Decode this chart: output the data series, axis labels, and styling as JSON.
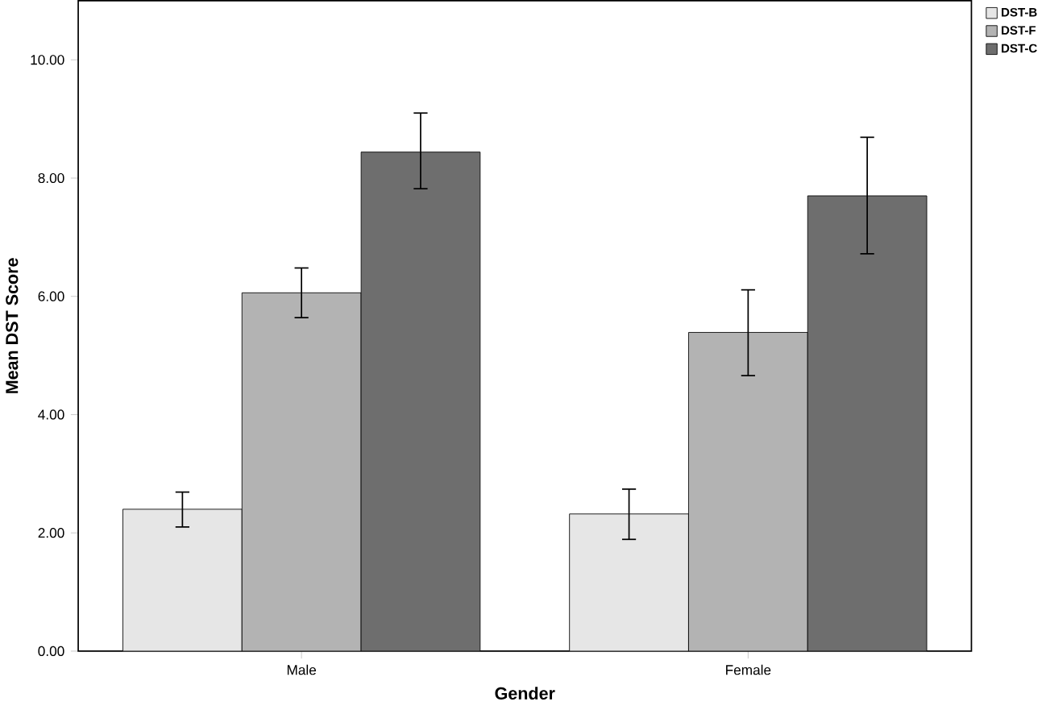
{
  "chart_data": {
    "type": "bar",
    "xlabel": "Gender",
    "ylabel": "Mean DST Score",
    "categories": [
      "Male",
      "Female"
    ],
    "series": [
      {
        "name": "DST-B",
        "color": "#e6e6e6",
        "values": [
          2.4,
          2.32
        ],
        "errors": [
          [
            2.1,
            2.69
          ],
          [
            1.89,
            2.74
          ]
        ]
      },
      {
        "name": "DST-F",
        "color": "#b3b3b3",
        "values": [
          6.06,
          5.39
        ],
        "errors": [
          [
            5.64,
            6.48
          ],
          [
            4.66,
            6.11
          ]
        ]
      },
      {
        "name": "DST-C",
        "color": "#6e6e6e",
        "values": [
          8.44,
          7.7
        ],
        "errors": [
          [
            7.82,
            9.1
          ],
          [
            6.72,
            8.69
          ]
        ]
      }
    ],
    "ylim": [
      0,
      11
    ],
    "yticks": [
      {
        "value": 0,
        "label": "0.00"
      },
      {
        "value": 2,
        "label": "2.00"
      },
      {
        "value": 4,
        "label": "4.00"
      },
      {
        "value": 6,
        "label": "6.00"
      },
      {
        "value": 8,
        "label": "8.00"
      },
      {
        "value": 10,
        "label": "10.00"
      }
    ],
    "grid": false,
    "legend": "top right"
  }
}
